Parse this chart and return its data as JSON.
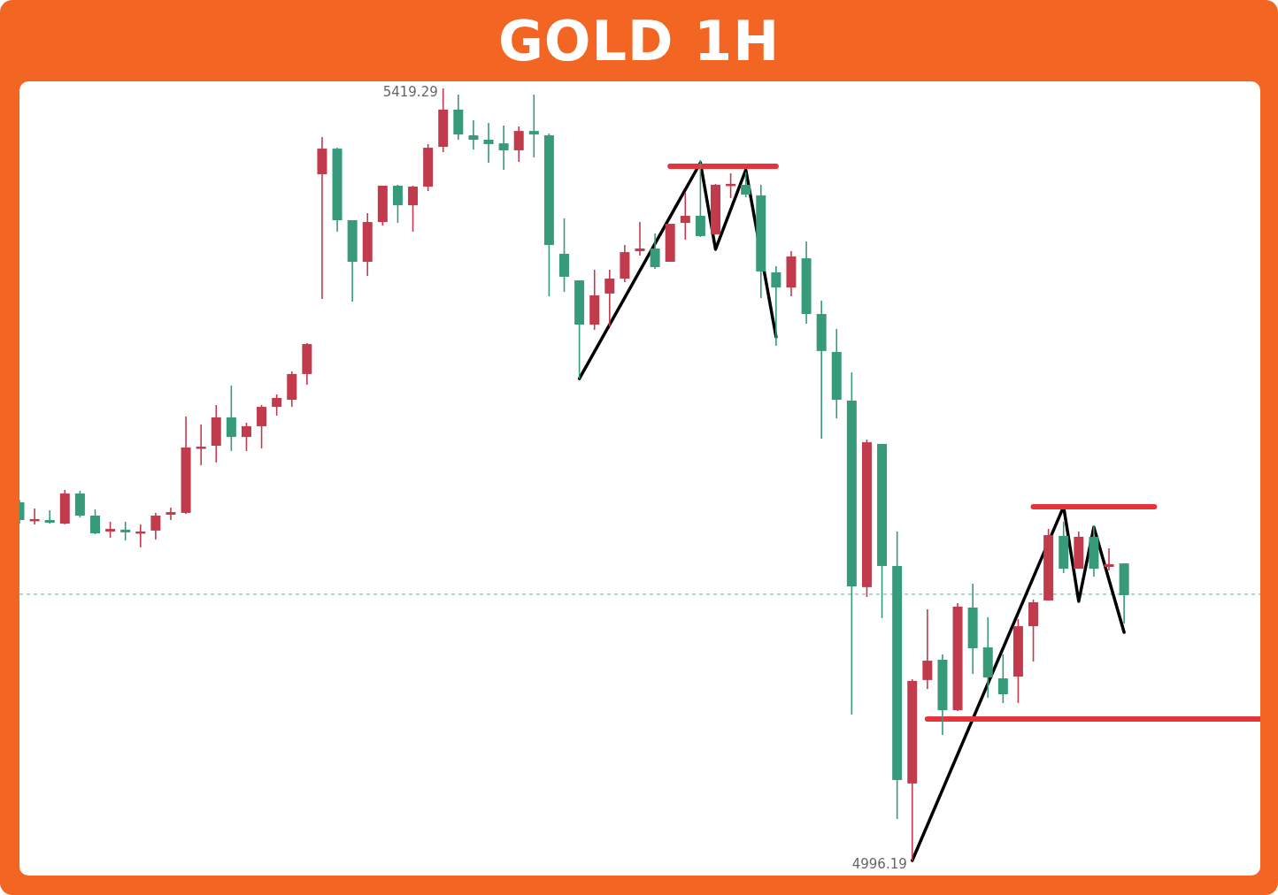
{
  "chart_data": {
    "type": "candlestick",
    "title": "GOLD 1H",
    "tick_labels": false,
    "categories": [
      null,
      null,
      null,
      null,
      null,
      null,
      null,
      null,
      null,
      null,
      null,
      null,
      null,
      null,
      null,
      null,
      null,
      null,
      null,
      null,
      null,
      null,
      null,
      null,
      null,
      null,
      null,
      null,
      null,
      null,
      null,
      null,
      null,
      null,
      null,
      null,
      null,
      null,
      null,
      null,
      null,
      null,
      null,
      null,
      null,
      null,
      null,
      null,
      null,
      null,
      null,
      null,
      null,
      null,
      null,
      null,
      null,
      null,
      null,
      null,
      null,
      null,
      null,
      null,
      null,
      null,
      null,
      null,
      null,
      null,
      null,
      null,
      null,
      null,
      null,
      null,
      null,
      null,
      null,
      null,
      null,
      null,
      null
    ],
    "ohlc": [
      [
        5192.5,
        5193.9,
        5180.8,
        5182.8
      ],
      [
        5182.3,
        5189.1,
        5180.4,
        5183.3
      ],
      [
        5182.8,
        5188.1,
        5180.8,
        5181.3
      ],
      [
        5180.8,
        5199.3,
        5180.4,
        5197.3
      ],
      [
        5197.3,
        5198.8,
        5184.2,
        5185.2
      ],
      [
        5185.2,
        5188.6,
        5175.0,
        5175.5
      ],
      [
        5176.5,
        5181.8,
        5173.1,
        5177.9
      ],
      [
        5177.5,
        5181.8,
        5171.6,
        5176.0
      ],
      [
        5175.5,
        5180.4,
        5167.8,
        5176.5
      ],
      [
        5177.0,
        5186.7,
        5172.1,
        5185.2
      ],
      [
        5185.7,
        5189.6,
        5182.8,
        5187.1
      ],
      [
        5186.7,
        5239.5,
        5186.2,
        5222.5
      ],
      [
        5222.0,
        5235.1,
        5212.8,
        5223.0
      ],
      [
        5223.5,
        5245.8,
        5214.3,
        5239.0
      ],
      [
        5239.0,
        5256.5,
        5220.6,
        5228.3
      ],
      [
        5228.3,
        5236.1,
        5220.6,
        5234.2
      ],
      [
        5234.2,
        5245.8,
        5222.0,
        5244.8
      ],
      [
        5244.8,
        5251.6,
        5240.0,
        5249.7
      ],
      [
        5248.7,
        5264.2,
        5244.8,
        5262.8
      ],
      [
        5262.8,
        5279.7,
        5256.9,
        5279.2
      ],
      [
        5372.3,
        5392.6,
        5303.9,
        5386.3
      ],
      [
        5386.3,
        5386.8,
        5340.8,
        5347.1
      ],
      [
        5347.1,
        5347.1,
        5302.5,
        5324.3
      ],
      [
        5324.3,
        5351.0,
        5316.5,
        5346.1
      ],
      [
        5346.1,
        5366.0,
        5344.2,
        5366.0
      ],
      [
        5366.0,
        5366.5,
        5345.6,
        5355.3
      ],
      [
        5355.3,
        5366.0,
        5340.8,
        5365.5
      ],
      [
        5365.5,
        5388.8,
        5363.1,
        5386.8
      ],
      [
        5387.3,
        5419.29,
        5384.4,
        5407.7
      ],
      [
        5407.7,
        5415.9,
        5391.2,
        5394.1
      ],
      [
        5393.6,
        5401.8,
        5385.8,
        5391.2
      ],
      [
        5391.2,
        5400.4,
        5378.6,
        5388.8
      ],
      [
        5389.2,
        5398.9,
        5374.7,
        5385.4
      ],
      [
        5385.4,
        5398.5,
        5379.1,
        5396.0
      ],
      [
        5396.0,
        5415.9,
        5381.5,
        5394.1
      ],
      [
        5393.6,
        5394.6,
        5305.4,
        5333.5
      ],
      [
        5328.7,
        5348.1,
        5307.8,
        5316.1
      ],
      [
        5314.1,
        5314.1,
        5260.3,
        5289.9
      ],
      [
        5289.9,
        5319.9,
        5287.0,
        5305.9
      ],
      [
        5306.9,
        5319.9,
        5288.9,
        5315.1
      ],
      [
        5315.1,
        5333.5,
        5313.2,
        5329.6
      ],
      [
        5330.1,
        5346.1,
        5327.7,
        5331.6
      ],
      [
        5331.6,
        5339.8,
        5320.4,
        5321.4
      ],
      [
        5324.3,
        5345.1,
        5324.3,
        5345.1
      ],
      [
        5345.6,
        5362.1,
        5336.4,
        5349.5
      ],
      [
        5349.5,
        5380.0,
        5337.9,
        5338.4
      ],
      [
        5339.3,
        5367.0,
        5339.3,
        5366.5
      ],
      [
        5366.0,
        5372.8,
        5359.2,
        5367.0
      ],
      [
        5366.5,
        5373.3,
        5359.7,
        5361.1
      ],
      [
        5360.7,
        5366.5,
        5304.4,
        5319.0
      ],
      [
        5318.5,
        5321.9,
        5278.3,
        5310.2
      ],
      [
        5310.2,
        5330.1,
        5305.4,
        5327.2
      ],
      [
        5326.2,
        5335.5,
        5290.4,
        5295.7
      ],
      [
        5295.7,
        5303.0,
        5227.4,
        5275.4
      ],
      [
        5274.9,
        5287.5,
        5238.5,
        5248.7
      ],
      [
        5248.2,
        5263.7,
        5076.2,
        5146.4
      ],
      [
        5146.0,
        5226.9,
        5140.6,
        5225.4
      ],
      [
        5224.5,
        5224.5,
        5129.0,
        5157.6
      ],
      [
        5157.6,
        5176.5,
        5019.0,
        5040.3
      ],
      [
        5038.4,
        5095.5,
        4996.19,
        5094.6
      ],
      [
        5095.1,
        5133.8,
        5090.2,
        5105.7
      ],
      [
        5106.2,
        5109.1,
        5065.0,
        5078.6
      ],
      [
        5078.6,
        5137.2,
        5078.1,
        5135.3
      ],
      [
        5134.8,
        5147.9,
        5098.5,
        5112.5
      ],
      [
        5113.0,
        5129.5,
        5085.4,
        5096.5
      ],
      [
        5096.0,
        5109.1,
        5082.5,
        5087.3
      ],
      [
        5097.0,
        5128.5,
        5082.5,
        5124.6
      ],
      [
        5124.6,
        5139.2,
        5105.2,
        5137.7
      ],
      [
        5138.7,
        5177.9,
        5138.7,
        5174.5
      ],
      [
        5174.1,
        5181.8,
        5153.7,
        5156.1
      ],
      [
        5156.1,
        5176.5,
        5156.1,
        5173.6
      ],
      [
        5173.6,
        5179.9,
        5151.8,
        5156.1
      ],
      [
        5157.1,
        5167.3,
        5155.2,
        5158.6
      ],
      [
        5159.0,
        5159.0,
        5126.1,
        5141.6
      ],
      null,
      null,
      null,
      null,
      null,
      null,
      null,
      null,
      null
    ],
    "colors": [
      "#379a7a",
      "#c23b4d",
      "#379a7a",
      "#c23b4d",
      "#379a7a",
      "#379a7a",
      "#c23b4d",
      "#379a7a",
      "#c23b4d",
      "#c23b4d",
      "#c23b4d",
      "#c23b4d",
      "#c23b4d",
      "#c23b4d",
      "#379a7a",
      "#c23b4d",
      "#c23b4d",
      "#c23b4d",
      "#c23b4d",
      "#c23b4d",
      "#c23b4d",
      "#379a7a",
      "#379a7a",
      "#c23b4d",
      "#c23b4d",
      "#379a7a",
      "#c23b4d",
      "#c23b4d",
      "#c23b4d",
      "#379a7a",
      "#379a7a",
      "#379a7a",
      "#379a7a",
      "#c23b4d",
      "#379a7a",
      "#379a7a",
      "#379a7a",
      "#379a7a",
      "#c23b4d",
      "#c23b4d",
      "#c23b4d",
      "#c23b4d",
      "#379a7a",
      "#c23b4d",
      "#c23b4d",
      "#379a7a",
      "#c23b4d",
      "#c23b4d",
      "#379a7a",
      "#379a7a",
      "#379a7a",
      "#c23b4d",
      "#379a7a",
      "#379a7a",
      "#379a7a",
      "#379a7a",
      "#c23b4d",
      "#379a7a",
      "#379a7a",
      "#c23b4d",
      "#c23b4d",
      "#379a7a",
      "#c23b4d",
      "#379a7a",
      "#379a7a",
      "#379a7a",
      "#c23b4d",
      "#c23b4d",
      "#c23b4d",
      "#379a7a",
      "#c23b4d",
      "#379a7a",
      "#c23b4d",
      "#379a7a",
      null,
      null,
      null,
      null,
      null,
      null,
      null,
      null,
      null
    ],
    "series": [
      {
        "type": "line",
        "color": "#000000",
        "values": [
          null,
          null,
          null,
          null,
          null,
          null,
          null,
          null,
          null,
          null,
          null,
          null,
          null,
          null,
          null,
          null,
          null,
          null,
          null,
          null,
          null,
          null,
          null,
          null,
          null,
          null,
          null,
          null,
          null,
          null,
          null,
          null,
          null,
          null,
          null,
          null,
          null,
          5260.3,
          null,
          null,
          null,
          null,
          null,
          null,
          null,
          5378.6,
          5331.1,
          null,
          5374.7,
          null,
          5283.1,
          null,
          null,
          null,
          null,
          null,
          null,
          null,
          null,
          null,
          null,
          null,
          null,
          null,
          null,
          null,
          null,
          null,
          null,
          null,
          null,
          null,
          null,
          null,
          null,
          null,
          null,
          null,
          null,
          null,
          null,
          null,
          null
        ]
      },
      {
        "type": "line",
        "color": "#000000",
        "values": [
          null,
          null,
          null,
          null,
          null,
          null,
          null,
          null,
          null,
          null,
          null,
          null,
          null,
          null,
          null,
          null,
          null,
          null,
          null,
          null,
          null,
          null,
          null,
          null,
          null,
          null,
          null,
          null,
          null,
          null,
          null,
          null,
          null,
          null,
          null,
          null,
          null,
          null,
          null,
          null,
          null,
          null,
          null,
          null,
          null,
          null,
          null,
          null,
          null,
          null,
          null,
          null,
          null,
          null,
          null,
          null,
          null,
          null,
          null,
          4996.2,
          null,
          null,
          null,
          null,
          null,
          null,
          null,
          null,
          null,
          5190.1,
          5138.2,
          5178.9,
          null,
          5121.2,
          null,
          null,
          null,
          null,
          null,
          null,
          null,
          null,
          null
        ]
      },
      {
        "type": "line",
        "color": "#e8323c",
        "values": [
          null,
          null,
          null,
          null,
          null,
          null,
          null,
          null,
          null,
          null,
          null,
          null,
          null,
          null,
          null,
          null,
          null,
          null,
          null,
          null,
          null,
          null,
          null,
          null,
          null,
          null,
          null,
          null,
          null,
          null,
          null,
          null,
          null,
          null,
          null,
          null,
          null,
          null,
          null,
          null,
          null,
          null,
          null,
          5376.6,
          null,
          null,
          null,
          null,
          null,
          null,
          5376.6,
          null,
          null,
          null,
          null,
          null,
          null,
          null,
          null,
          null,
          null,
          null,
          null,
          null,
          null,
          null,
          null,
          null,
          null,
          null,
          null,
          null,
          null,
          null,
          null,
          null,
          null,
          null,
          null,
          null,
          null,
          null,
          null
        ]
      },
      {
        "type": "line",
        "color": "#e8323c",
        "values": [
          null,
          null,
          null,
          null,
          null,
          null,
          null,
          null,
          null,
          null,
          null,
          null,
          null,
          null,
          null,
          null,
          null,
          null,
          null,
          null,
          null,
          null,
          null,
          null,
          null,
          null,
          null,
          null,
          null,
          null,
          null,
          null,
          null,
          null,
          null,
          null,
          null,
          null,
          null,
          null,
          null,
          null,
          null,
          null,
          null,
          null,
          null,
          null,
          null,
          null,
          null,
          null,
          null,
          null,
          null,
          null,
          null,
          null,
          null,
          null,
          null,
          null,
          null,
          null,
          null,
          null,
          null,
          5190.1,
          null,
          null,
          null,
          null,
          null,
          null,
          null,
          5190.1,
          null,
          null,
          null,
          null,
          null,
          null,
          null
        ]
      },
      {
        "type": "line",
        "color": "#e8323c",
        "values": [
          null,
          null,
          null,
          null,
          null,
          null,
          null,
          null,
          null,
          null,
          null,
          null,
          null,
          null,
          null,
          null,
          null,
          null,
          null,
          null,
          null,
          null,
          null,
          null,
          null,
          null,
          null,
          null,
          null,
          null,
          null,
          null,
          null,
          null,
          null,
          null,
          null,
          null,
          null,
          null,
          null,
          null,
          null,
          null,
          null,
          null,
          null,
          null,
          null,
          null,
          null,
          null,
          null,
          null,
          null,
          null,
          null,
          null,
          null,
          null,
          5073.7,
          null,
          null,
          null,
          null,
          null,
          null,
          null,
          null,
          null,
          null,
          null,
          null,
          null,
          null,
          null,
          null,
          null,
          null,
          null,
          null,
          null,
          5073.7
        ]
      }
    ],
    "ref_lines": [
      {
        "axis": "y",
        "value": 5142.1,
        "color": "#7cc4a9",
        "line_style": "dashed"
      }
    ],
    "annotations": [
      "5419.29",
      "4996.19"
    ]
  }
}
